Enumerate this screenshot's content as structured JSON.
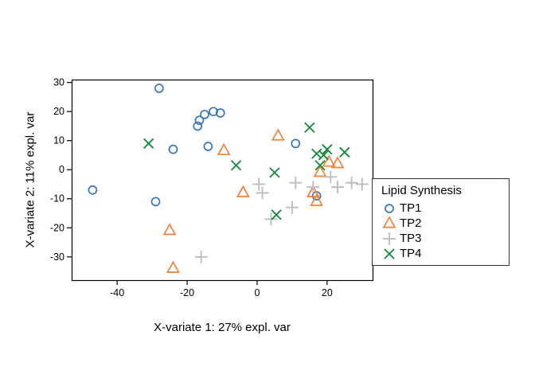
{
  "figure": {
    "background": "#ffffff"
  },
  "chart_data": {
    "type": "scatter",
    "title": "",
    "xlabel": "X-variate 1: 27% expl. var",
    "ylabel": "X-variate 2: 11% expl. var",
    "xlim": [
      -53,
      33
    ],
    "ylim": [
      -38,
      31
    ],
    "xticks": [
      -40,
      -20,
      0,
      20
    ],
    "yticks": [
      -30,
      -20,
      -10,
      0,
      10,
      20,
      30
    ],
    "grid": false,
    "legend": {
      "title": "Lipid Synthesis",
      "position": "right"
    },
    "series": [
      {
        "name": "TP1",
        "marker": "circle",
        "color": "#3377B9",
        "points": [
          [
            -47,
            -7
          ],
          [
            -28,
            28
          ],
          [
            -29,
            -11
          ],
          [
            -24,
            7
          ],
          [
            -17,
            15
          ],
          [
            -16.5,
            17
          ],
          [
            -15,
            19
          ],
          [
            -12.5,
            20
          ],
          [
            -10.5,
            19.5
          ],
          [
            -14,
            8
          ],
          [
            11,
            9
          ],
          [
            17,
            -9
          ]
        ]
      },
      {
        "name": "TP2",
        "marker": "triangle",
        "color": "#F08138",
        "points": [
          [
            -25,
            -21
          ],
          [
            -24,
            -34
          ],
          [
            -9.5,
            6.5
          ],
          [
            -4,
            -8
          ],
          [
            6,
            11.5
          ],
          [
            16,
            -8
          ],
          [
            17,
            -11
          ],
          [
            18,
            -1
          ],
          [
            20.5,
            2.5
          ],
          [
            23,
            2
          ]
        ]
      },
      {
        "name": "TP3",
        "marker": "plus",
        "color": "#BEBEBE",
        "points": [
          [
            -16,
            -30
          ],
          [
            0.5,
            -5
          ],
          [
            1.5,
            -8
          ],
          [
            4,
            -17
          ],
          [
            10,
            -13
          ],
          [
            11,
            -4.5
          ],
          [
            16,
            -6
          ],
          [
            21,
            -2.5
          ],
          [
            23,
            -6
          ],
          [
            27,
            -4.5
          ],
          [
            30,
            -5
          ]
        ]
      },
      {
        "name": "TP4",
        "marker": "x",
        "color": "#17883E",
        "points": [
          [
            -31,
            9
          ],
          [
            -6,
            1.5
          ],
          [
            5,
            -1
          ],
          [
            5.5,
            -15.5
          ],
          [
            15,
            14.5
          ],
          [
            17,
            5.5
          ],
          [
            19,
            5
          ],
          [
            20,
            7
          ],
          [
            25,
            6
          ],
          [
            18,
            1.5
          ]
        ]
      }
    ]
  }
}
